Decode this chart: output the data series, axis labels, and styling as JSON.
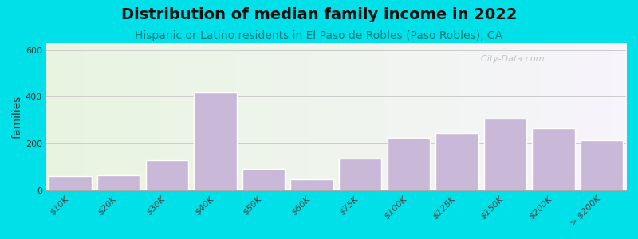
{
  "title": "Distribution of median family income in 2022",
  "subtitle": "Hispanic or Latino residents in El Paso de Robles (Paso Robles), CA",
  "ylabel": "families",
  "categories": [
    "$10K",
    "$20K",
    "$30K",
    "$40K",
    "$50K",
    "$60K",
    "$75K",
    "$100K",
    "$125K",
    "$150K",
    "$200K",
    "> $200K"
  ],
  "values": [
    60,
    65,
    130,
    420,
    90,
    45,
    135,
    225,
    245,
    305,
    265,
    215
  ],
  "bar_color": "#c9b8d8",
  "bar_edge_color": "#ffffff",
  "background_outer": "#00e0e8",
  "title_fontsize": 14,
  "subtitle_fontsize": 10,
  "ylabel_fontsize": 10,
  "tick_fontsize": 8,
  "ylim": [
    0,
    630
  ],
  "yticks": [
    0,
    200,
    400,
    600
  ],
  "grid_color": "#cccccc",
  "watermark_text": "  City-Data.com",
  "watermark_color": "#bbbbbb"
}
